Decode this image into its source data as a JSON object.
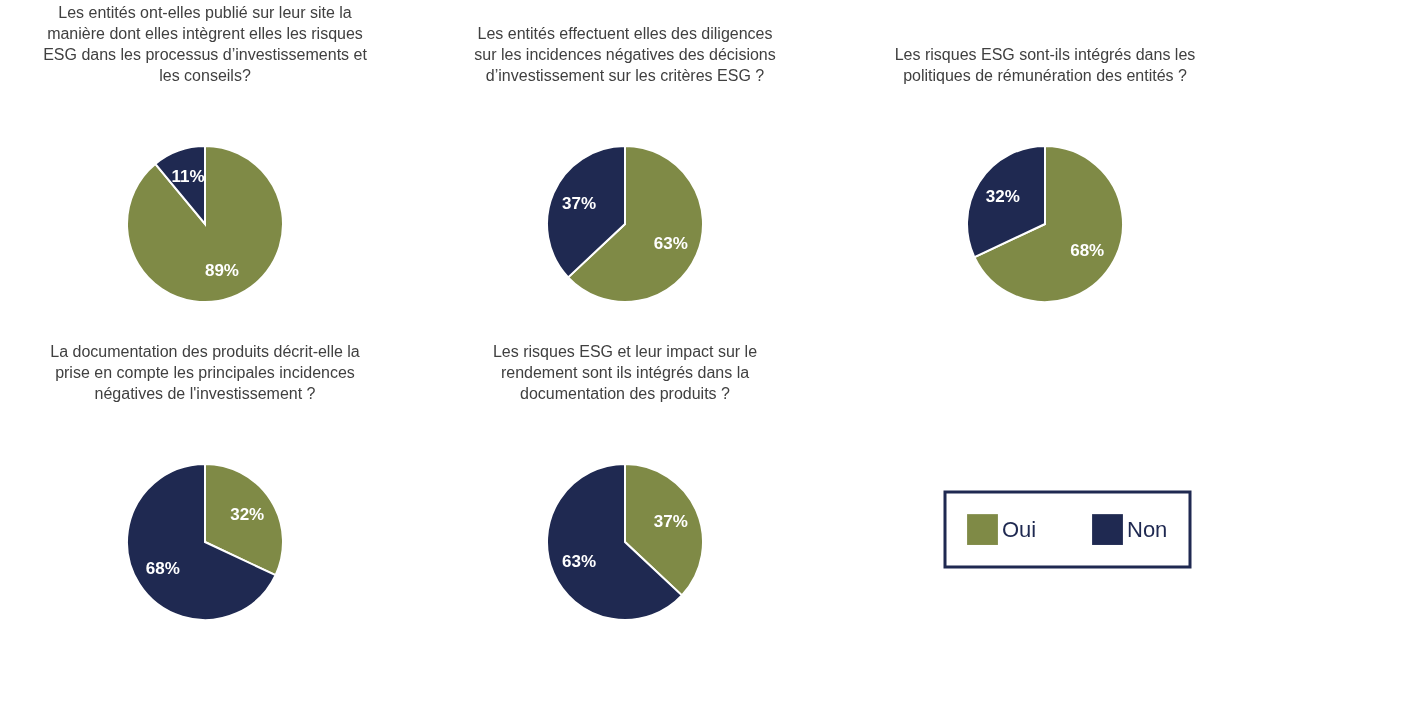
{
  "chart_data": [
    {
      "type": "pie",
      "title": "Les entités ont-elles publié sur leur site la manière dont elles intègrent elles les risques ESG dans les processus d’investissements et les conseils?",
      "categories": [
        null,
        null
      ],
      "values": [
        89,
        11
      ],
      "colors": [
        "#7f8a46",
        "#1f2951"
      ],
      "value_labels": [
        "89%",
        "11%"
      ]
    },
    {
      "type": "pie",
      "title": "Les entités effectuent elles des diligences sur les incidences négatives des décisions d’investissement sur les critères ESG ?",
      "categories": [
        null,
        null
      ],
      "values": [
        63,
        37
      ],
      "colors": [
        "#7f8a46",
        "#1f2951"
      ],
      "value_labels": [
        "63%",
        "37%"
      ]
    },
    {
      "type": "pie",
      "title": "Les risques ESG sont-ils intégrés dans les politiques de rémunération des entités ?",
      "categories": [
        null,
        null
      ],
      "values": [
        68,
        32
      ],
      "colors": [
        "#7f8a46",
        "#1f2951"
      ],
      "value_labels": [
        "68%",
        "32%"
      ]
    },
    {
      "type": "pie",
      "title": "La documentation des produits décrit-elle la prise en compte les principales incidences négatives de l'investissement ?",
      "categories": [
        null,
        null
      ],
      "values": [
        32,
        68
      ],
      "colors": [
        "#7f8a46",
        "#1f2951"
      ],
      "value_labels": [
        "32%",
        "68%"
      ]
    },
    {
      "type": "pie",
      "title": "Les risques ESG et leur impact sur le rendement sont ils intégrés dans la documentation des produits ?",
      "categories": [
        "Oui",
        "Non"
      ],
      "values": [
        37,
        63
      ],
      "colors": [
        "#7f8a46",
        "#1f2951"
      ],
      "value_labels": [
        "37%",
        "63%"
      ],
      "legend": "right"
    }
  ]
}
